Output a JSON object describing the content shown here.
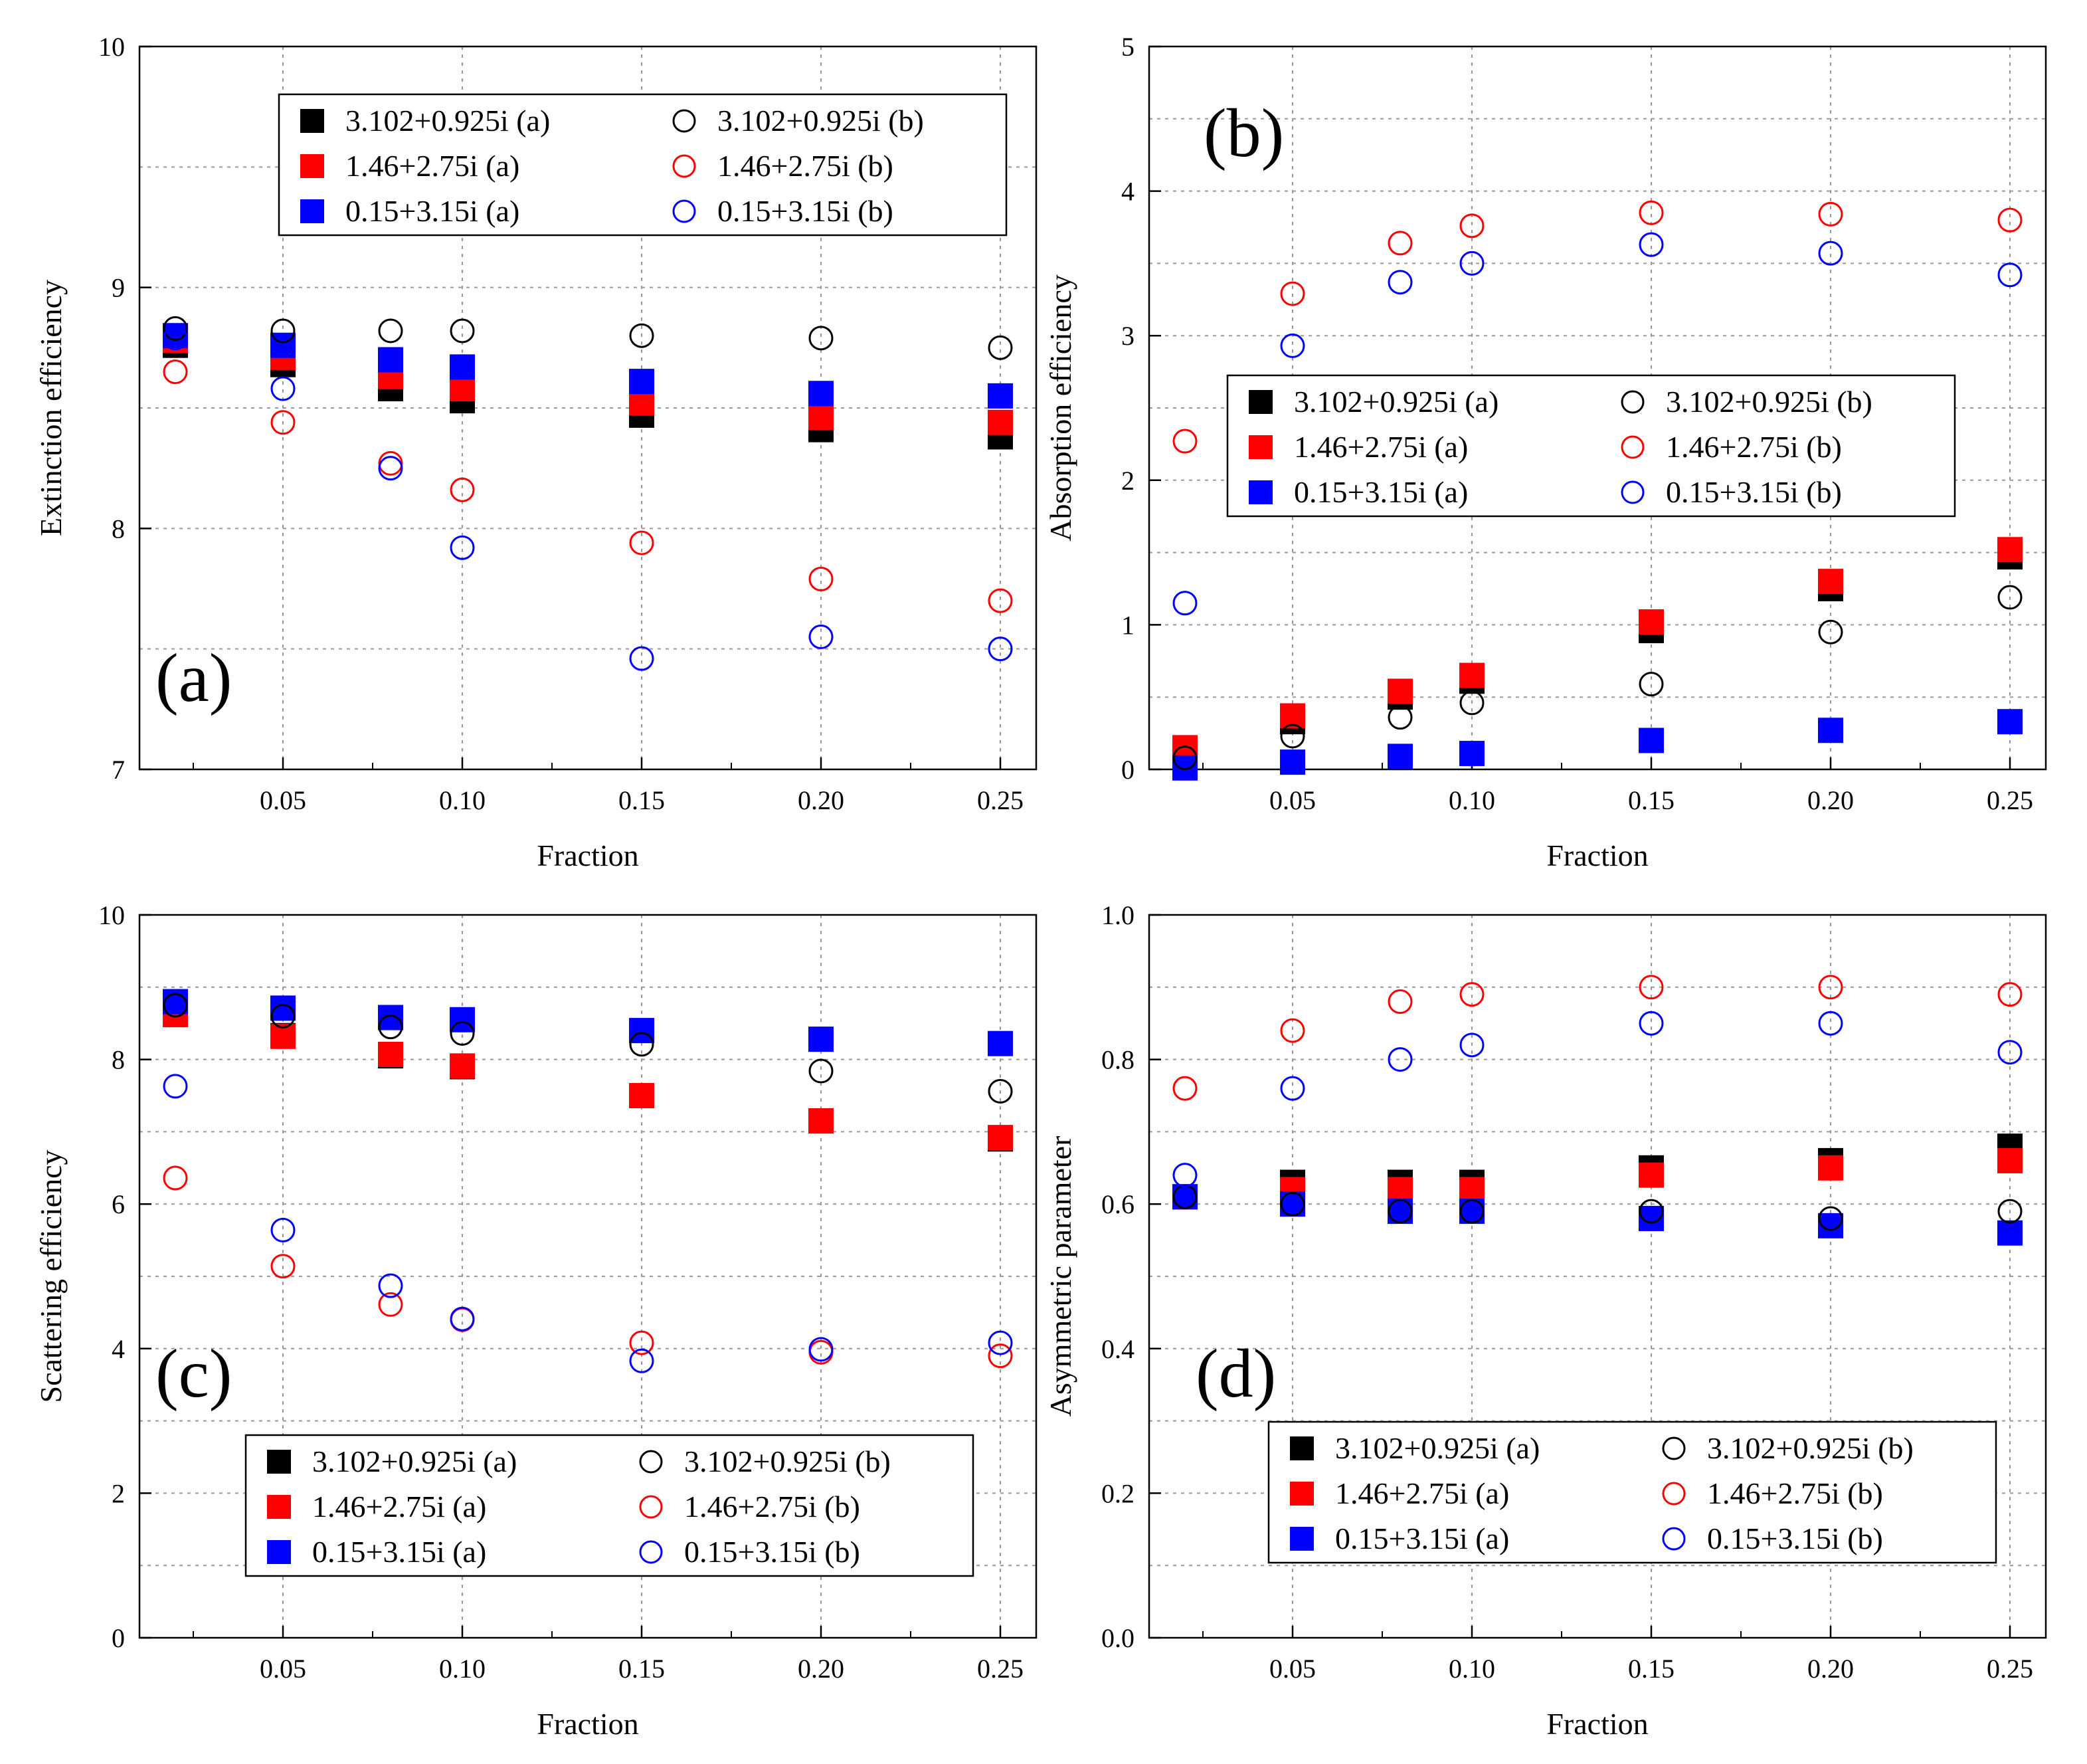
{
  "chart_data": [
    {
      "type": "scatter",
      "panel_label": "(a)",
      "title": "",
      "xlabel": "Fraction",
      "ylabel": "Extinction efficiency",
      "xlim": [
        0.01,
        0.26
      ],
      "ylim": [
        7,
        10
      ],
      "xticks": [
        0.05,
        0.1,
        0.15,
        0.2,
        0.25
      ],
      "xtick_labels": [
        "0.05",
        "0.10",
        "0.15",
        "0.20",
        "0.25"
      ],
      "yticks": [
        7,
        8,
        9,
        10
      ],
      "ytick_labels": [
        "7",
        "8",
        "9",
        "10"
      ],
      "grid": true,
      "legend_position": "top-center",
      "x": [
        0.02,
        0.05,
        0.08,
        0.1,
        0.15,
        0.2,
        0.25
      ],
      "series": [
        {
          "name": "3.102+0.925i (a)",
          "marker": "square",
          "color": "#000000",
          "values": [
            8.76,
            8.68,
            8.58,
            8.53,
            8.47,
            8.41,
            8.38
          ]
        },
        {
          "name": "1.46+2.75i (a)",
          "marker": "square",
          "color": "#ff0000",
          "values": [
            8.78,
            8.71,
            8.63,
            8.58,
            8.52,
            8.46,
            8.44
          ]
        },
        {
          "name": "0.15+3.15i (a)",
          "marker": "square",
          "color": "#0000ff",
          "values": [
            8.8,
            8.76,
            8.7,
            8.67,
            8.61,
            8.56,
            8.55
          ]
        },
        {
          "name": "3.102+0.925i (b)",
          "marker": "circle",
          "color": "#000000",
          "values": [
            8.83,
            8.82,
            8.82,
            8.82,
            8.8,
            8.79,
            8.75
          ]
        },
        {
          "name": "1.46+2.75i (b)",
          "marker": "circle",
          "color": "#ff0000",
          "values": [
            8.65,
            8.44,
            8.27,
            8.16,
            7.94,
            7.79,
            7.7
          ]
        },
        {
          "name": "0.15+3.15i (b)",
          "marker": "circle",
          "color": "#0000ff",
          "values": [
            8.79,
            8.58,
            8.25,
            7.92,
            7.46,
            7.55,
            7.5
          ]
        }
      ]
    },
    {
      "type": "scatter",
      "panel_label": "(b)",
      "title": "",
      "xlabel": "Fraction",
      "ylabel": "Absorption efficiency",
      "xlim": [
        0.01,
        0.26
      ],
      "ylim": [
        0,
        5
      ],
      "xticks": [
        0.05,
        0.1,
        0.15,
        0.2,
        0.25
      ],
      "xtick_labels": [
        "0.05",
        "0.10",
        "0.15",
        "0.20",
        "0.25"
      ],
      "yticks": [
        0,
        1,
        2,
        3,
        4,
        5
      ],
      "ytick_labels": [
        "0",
        "1",
        "2",
        "3",
        "4",
        "5"
      ],
      "grid": true,
      "legend_position": "center-right",
      "x": [
        0.02,
        0.05,
        0.08,
        0.1,
        0.15,
        0.2,
        0.25
      ],
      "series": [
        {
          "name": "3.102+0.925i (a)",
          "marker": "square",
          "color": "#000000",
          "values": [
            0.13,
            0.33,
            0.5,
            0.61,
            0.96,
            1.25,
            1.47
          ]
        },
        {
          "name": "1.46+2.75i (a)",
          "marker": "square",
          "color": "#ff0000",
          "values": [
            0.15,
            0.37,
            0.54,
            0.65,
            1.02,
            1.3,
            1.52
          ]
        },
        {
          "name": "0.15+3.15i (a)",
          "marker": "square",
          "color": "#0000ff",
          "values": [
            0.01,
            0.05,
            0.09,
            0.11,
            0.2,
            0.27,
            0.33
          ]
        },
        {
          "name": "3.102+0.925i (b)",
          "marker": "circle",
          "color": "#000000",
          "values": [
            0.08,
            0.23,
            0.36,
            0.46,
            0.59,
            0.95,
            1.19
          ]
        },
        {
          "name": "1.46+2.75i (b)",
          "marker": "circle",
          "color": "#ff0000",
          "values": [
            2.27,
            3.29,
            3.64,
            3.76,
            3.85,
            3.84,
            3.8
          ]
        },
        {
          "name": "0.15+3.15i (b)",
          "marker": "circle",
          "color": "#0000ff",
          "values": [
            1.15,
            2.93,
            3.37,
            3.5,
            3.63,
            3.57,
            3.42
          ]
        }
      ]
    },
    {
      "type": "scatter",
      "panel_label": "(c)",
      "title": "",
      "xlabel": "Fraction",
      "ylabel": "Scattering efficiency",
      "xlim": [
        0.01,
        0.26
      ],
      "ylim": [
        0,
        10
      ],
      "xticks": [
        0.05,
        0.1,
        0.15,
        0.2,
        0.25
      ],
      "xtick_labels": [
        "0.05",
        "0.10",
        "0.15",
        "0.20",
        "0.25"
      ],
      "yticks": [
        0,
        2,
        4,
        6,
        8,
        10
      ],
      "ytick_labels": [
        "0",
        "2",
        "4",
        "6",
        "8",
        "10"
      ],
      "grid": true,
      "legend_position": "bottom-center",
      "x": [
        0.02,
        0.05,
        0.08,
        0.1,
        0.15,
        0.2,
        0.25
      ],
      "series": [
        {
          "name": "3.102+0.925i (a)",
          "marker": "square",
          "color": "#000000",
          "values": [
            8.63,
            8.33,
            8.05,
            7.9,
            7.5,
            7.15,
            6.9
          ]
        },
        {
          "name": "1.46+2.75i (a)",
          "marker": "square",
          "color": "#ff0000",
          "values": [
            8.62,
            8.32,
            8.07,
            7.91,
            7.5,
            7.15,
            6.92
          ]
        },
        {
          "name": "0.15+3.15i (a)",
          "marker": "square",
          "color": "#0000ff",
          "values": [
            8.8,
            8.71,
            8.58,
            8.55,
            8.4,
            8.28,
            8.22
          ]
        },
        {
          "name": "3.102+0.925i (b)",
          "marker": "circle",
          "color": "#000000",
          "values": [
            8.75,
            8.6,
            8.45,
            8.36,
            8.21,
            7.84,
            7.56
          ]
        },
        {
          "name": "1.46+2.75i (b)",
          "marker": "circle",
          "color": "#ff0000",
          "values": [
            6.36,
            5.14,
            4.61,
            4.4,
            4.08,
            3.95,
            3.9
          ]
        },
        {
          "name": "0.15+3.15i (b)",
          "marker": "circle",
          "color": "#0000ff",
          "values": [
            7.63,
            5.64,
            4.87,
            4.41,
            3.83,
            3.99,
            4.08
          ]
        }
      ]
    },
    {
      "type": "scatter",
      "panel_label": "(d)",
      "title": "",
      "xlabel": "Fraction",
      "ylabel": "Asymmetric parameter",
      "xlim": [
        0.01,
        0.26
      ],
      "ylim": [
        0,
        1
      ],
      "xticks": [
        0.05,
        0.1,
        0.15,
        0.2,
        0.25
      ],
      "xtick_labels": [
        "0.05",
        "0.10",
        "0.15",
        "0.20",
        "0.25"
      ],
      "yticks": [
        0.0,
        0.2,
        0.4,
        0.6,
        0.8,
        1.0
      ],
      "ytick_labels": [
        "0.0",
        "0.2",
        "0.4",
        "0.6",
        "0.8",
        "1.0"
      ],
      "grid": true,
      "legend_position": "bottom-right",
      "x": [
        0.02,
        0.05,
        0.08,
        0.1,
        0.15,
        0.2,
        0.25
      ],
      "series": [
        {
          "name": "3.102+0.925i (a)",
          "marker": "square",
          "color": "#000000",
          "values": [
            0.61,
            0.63,
            0.63,
            0.63,
            0.65,
            0.66,
            0.68
          ]
        },
        {
          "name": "1.46+2.75i (a)",
          "marker": "square",
          "color": "#ff0000",
          "values": [
            0.61,
            0.62,
            0.62,
            0.62,
            0.64,
            0.65,
            0.66
          ]
        },
        {
          "name": "0.15+3.15i (a)",
          "marker": "square",
          "color": "#0000ff",
          "values": [
            0.61,
            0.6,
            0.59,
            0.59,
            0.58,
            0.57,
            0.56
          ]
        },
        {
          "name": "3.102+0.925i (b)",
          "marker": "circle",
          "color": "#000000",
          "values": [
            0.61,
            0.6,
            0.59,
            0.59,
            0.59,
            0.58,
            0.59
          ]
        },
        {
          "name": "1.46+2.75i (b)",
          "marker": "circle",
          "color": "#ff0000",
          "values": [
            0.76,
            0.84,
            0.88,
            0.89,
            0.9,
            0.9,
            0.89
          ]
        },
        {
          "name": "0.15+3.15i (b)",
          "marker": "circle",
          "color": "#0000ff",
          "values": [
            0.64,
            0.76,
            0.8,
            0.82,
            0.85,
            0.85,
            0.81
          ]
        }
      ]
    }
  ]
}
